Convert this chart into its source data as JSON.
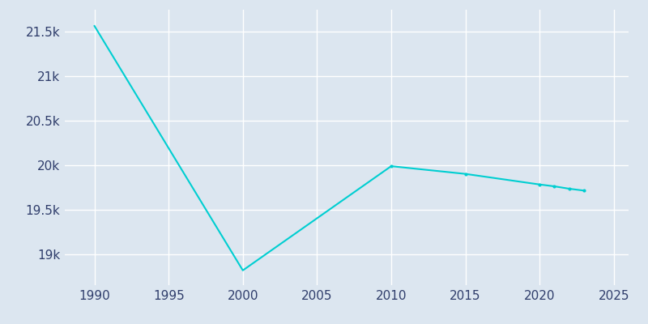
{
  "years": [
    1990,
    2000,
    2010,
    2015,
    2020,
    2021,
    2022,
    2023
  ],
  "population": [
    21567,
    18816,
    19989,
    19902,
    19783,
    19762,
    19735,
    19714
  ],
  "line_color": "#00CED1",
  "marker_color": "#00CED1",
  "bg_color": "#dce6f0",
  "plot_bg_color": "#dce6f0",
  "grid_color": "#FFFFFF",
  "tick_label_color": "#2F3D6B",
  "xlim": [
    1988,
    2026
  ],
  "ylim": [
    18650,
    21750
  ],
  "xticks": [
    1990,
    1995,
    2000,
    2005,
    2010,
    2015,
    2020,
    2025
  ],
  "yticks": [
    19000,
    19500,
    20000,
    20500,
    21000,
    21500
  ],
  "ytick_labels": [
    "19k",
    "19.5k",
    "20k",
    "20.5k",
    "21k",
    "21.5k"
  ],
  "figsize": [
    8.0,
    4.0
  ],
  "dpi": 100
}
